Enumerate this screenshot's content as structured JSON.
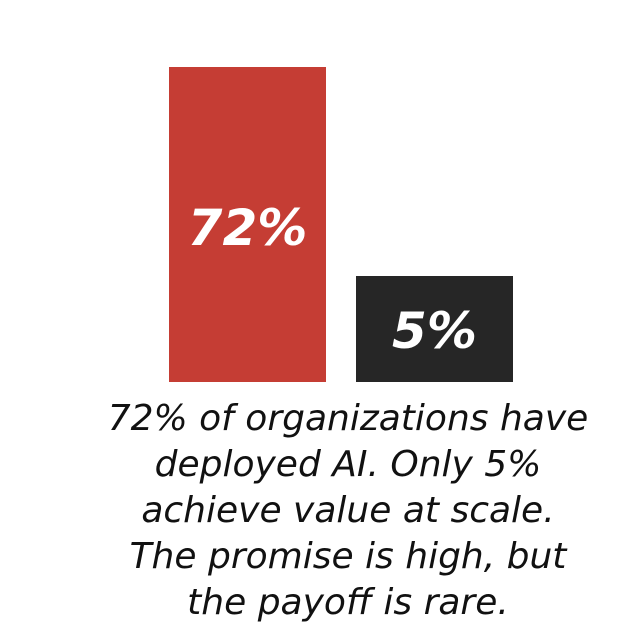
{
  "chart_data": {
    "type": "bar",
    "categories": [
      "",
      ""
    ],
    "values": [
      72,
      5
    ],
    "data_labels": [
      "72%",
      "5%"
    ],
    "colors": [
      "#c53d34",
      "#262626"
    ],
    "title": "",
    "xlabel": "",
    "ylabel": "",
    "grid": false
  },
  "caption": {
    "lines": [
      "72% of organizations have",
      "deployed AI. Only 5%",
      "achieve value at scale.",
      "The promise is high, but",
      "the payoff is rare."
    ]
  }
}
